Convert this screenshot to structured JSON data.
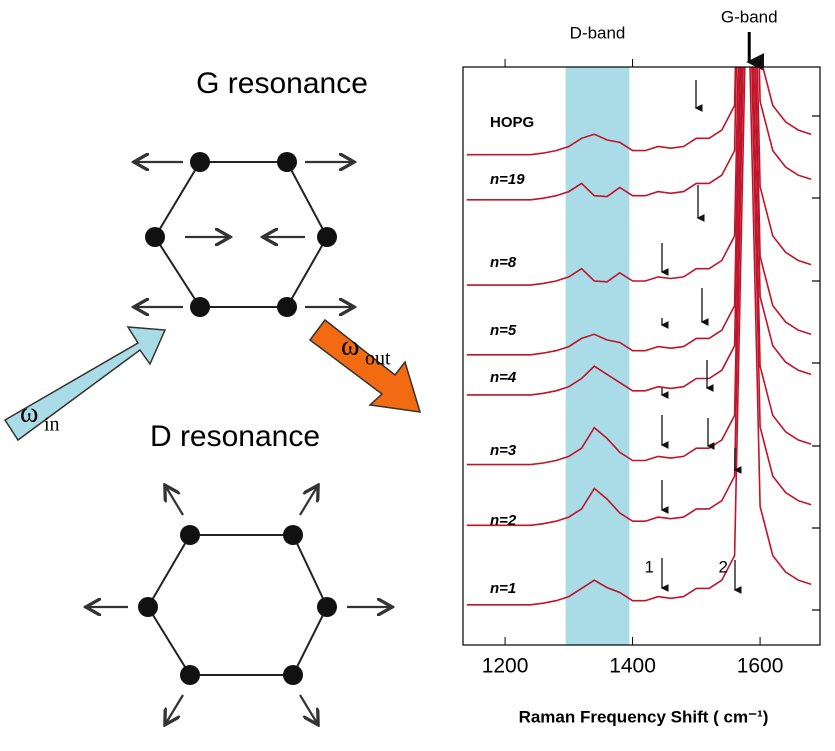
{
  "diagram": {
    "g_title": "G resonance",
    "d_title": "D resonance",
    "omega_in": {
      "symbol": "ω",
      "sub": "in"
    },
    "omega_out": {
      "symbol": "ω",
      "sub": "out"
    }
  },
  "chart_data": {
    "type": "line",
    "xlabel": "Raman Frequency Shift ( cm⁻¹)",
    "x": [
      1140,
      1160,
      1180,
      1200,
      1220,
      1240,
      1260,
      1280,
      1300,
      1320,
      1340,
      1360,
      1380,
      1400,
      1420,
      1440,
      1460,
      1480,
      1500,
      1520,
      1540,
      1560,
      1580,
      1600,
      1620,
      1640,
      1660,
      1680
    ],
    "xlim": [
      1134,
      1694
    ],
    "xticks": [
      1200,
      1400,
      1600
    ],
    "ylim": [
      0,
      7.05
    ],
    "highlight": {
      "label": "D-band",
      "range": [
        1295,
        1395
      ],
      "color": "#a9dce6"
    },
    "g_band": {
      "label": "G-band",
      "x": 1583
    },
    "peak_labels": [
      "1",
      "2"
    ],
    "series": [
      {
        "name": "n=1",
        "color": "#c0142a",
        "values": [
          0.49,
          0.49,
          0.49,
          0.49,
          0.49,
          0.49,
          0.51,
          0.54,
          0.59,
          0.69,
          0.79,
          0.7,
          0.64,
          0.54,
          0.54,
          0.59,
          0.57,
          0.59,
          0.69,
          0.69,
          0.79,
          1.09,
          8.49,
          1.69,
          1.09,
          0.89,
          0.79,
          0.74
        ]
      },
      {
        "name": "n=2",
        "color": "#c0142a",
        "values": [
          1.46,
          1.46,
          1.46,
          1.46,
          1.46,
          1.46,
          1.48,
          1.51,
          1.56,
          1.66,
          1.91,
          1.78,
          1.61,
          1.51,
          1.51,
          1.56,
          1.54,
          1.56,
          1.66,
          1.66,
          1.76,
          2.06,
          9.46,
          2.66,
          2.06,
          1.86,
          1.76,
          1.71
        ]
      },
      {
        "name": "n=3",
        "color": "#c0142a",
        "values": [
          2.2,
          2.2,
          2.2,
          2.2,
          2.2,
          2.2,
          2.22,
          2.25,
          2.3,
          2.4,
          2.65,
          2.52,
          2.35,
          2.25,
          2.25,
          2.3,
          2.28,
          2.3,
          2.4,
          2.4,
          2.5,
          2.8,
          10.2,
          3.4,
          2.8,
          2.6,
          2.5,
          2.45
        ]
      },
      {
        "name": "n=4",
        "color": "#c0142a",
        "values": [
          3.05,
          3.05,
          3.05,
          3.05,
          3.05,
          3.05,
          3.07,
          3.1,
          3.15,
          3.25,
          3.4,
          3.3,
          3.2,
          3.1,
          3.1,
          3.15,
          3.13,
          3.15,
          3.25,
          3.25,
          3.35,
          3.65,
          11.05,
          4.25,
          3.65,
          3.45,
          3.35,
          3.3
        ]
      },
      {
        "name": "n=5",
        "color": "#c0142a",
        "values": [
          3.54,
          3.54,
          3.54,
          3.54,
          3.54,
          3.54,
          3.56,
          3.59,
          3.64,
          3.74,
          3.79,
          3.72,
          3.69,
          3.59,
          3.59,
          3.64,
          3.62,
          3.64,
          3.74,
          3.74,
          3.84,
          4.14,
          11.54,
          4.74,
          4.14,
          3.94,
          3.84,
          3.79
        ]
      },
      {
        "name": "n=8",
        "color": "#c0142a",
        "values": [
          4.39,
          4.39,
          4.39,
          4.39,
          4.39,
          4.39,
          4.41,
          4.44,
          4.49,
          4.59,
          4.44,
          4.43,
          4.54,
          4.44,
          4.44,
          4.49,
          4.47,
          4.49,
          4.59,
          4.59,
          4.69,
          4.99,
          12.39,
          5.59,
          4.99,
          4.79,
          4.69,
          4.64
        ]
      },
      {
        "name": "n=19",
        "color": "#c0142a",
        "values": [
          5.43,
          5.43,
          5.43,
          5.43,
          5.43,
          5.43,
          5.45,
          5.48,
          5.53,
          5.63,
          5.48,
          5.47,
          5.58,
          5.48,
          5.48,
          5.53,
          5.51,
          5.53,
          5.63,
          5.63,
          5.73,
          6.03,
          13.43,
          6.63,
          6.03,
          5.83,
          5.73,
          5.68
        ]
      },
      {
        "name": "HOPG",
        "color": "#c0142a",
        "values": [
          5.98,
          5.98,
          5.98,
          5.98,
          5.98,
          5.98,
          6.0,
          6.03,
          6.08,
          6.18,
          6.23,
          6.16,
          6.13,
          6.03,
          6.03,
          6.08,
          6.06,
          6.08,
          6.18,
          6.18,
          6.28,
          6.58,
          13.98,
          7.18,
          6.58,
          6.38,
          6.28,
          6.23
        ]
      }
    ]
  }
}
